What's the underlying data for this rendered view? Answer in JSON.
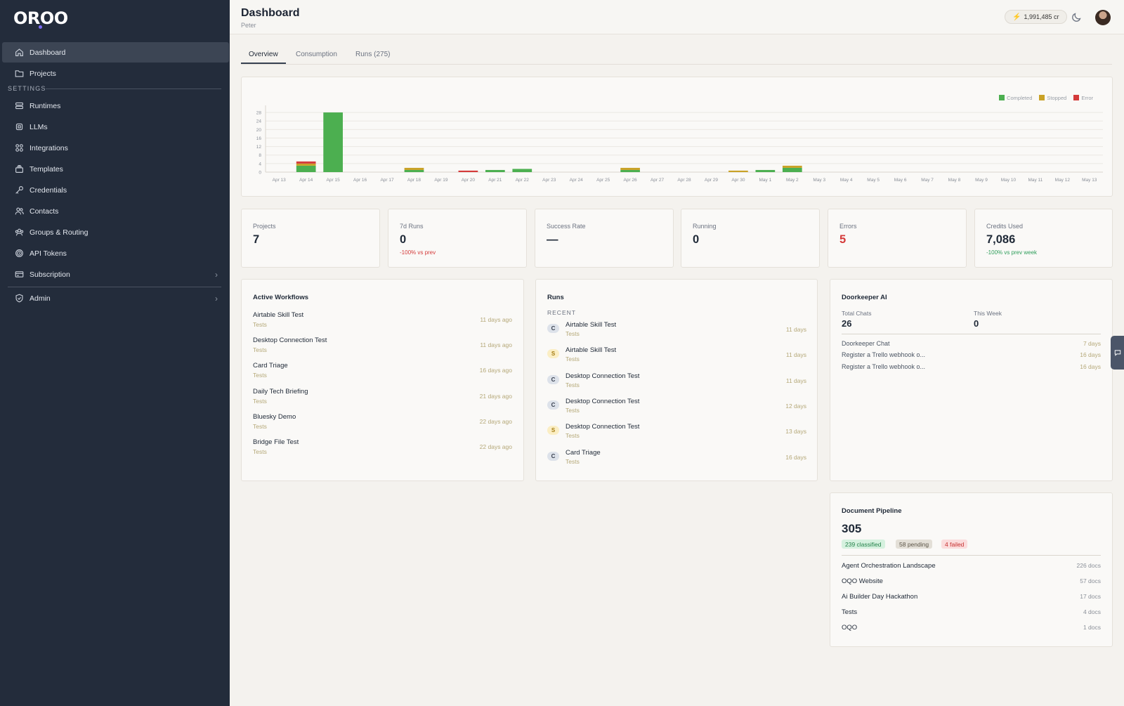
{
  "app": {
    "logo": "OROO"
  },
  "sidebar": {
    "items": [
      {
        "label": "Dashboard",
        "icon": "home-icon"
      },
      {
        "label": "Projects",
        "icon": "folder-icon"
      },
      {
        "label": "Runtimes",
        "icon": "database-icon"
      },
      {
        "label": "LLMs",
        "icon": "chip-icon"
      },
      {
        "label": "Integrations",
        "icon": "grid-icon"
      },
      {
        "label": "Templates",
        "icon": "stack-icon"
      },
      {
        "label": "Credentials",
        "icon": "key-icon"
      },
      {
        "label": "Contacts",
        "icon": "users-icon"
      },
      {
        "label": "Groups & Routing",
        "icon": "group-icon"
      },
      {
        "label": "API Tokens",
        "icon": "fingerprint-icon"
      },
      {
        "label": "Subscription",
        "icon": "card-icon"
      },
      {
        "label": "Admin",
        "icon": "shield-icon"
      }
    ],
    "settings_label": "SETTINGS"
  },
  "header": {
    "title": "Dashboard",
    "subtitle": "Peter",
    "credits": "1,991,485 cr"
  },
  "tabs": [
    {
      "label": "Overview"
    },
    {
      "label": "Consumption"
    },
    {
      "label": "Runs (275)"
    }
  ],
  "chart_data": {
    "type": "bar",
    "stacked": true,
    "categories": [
      "Apr 13",
      "Apr 14",
      "Apr 15",
      "Apr 16",
      "Apr 17",
      "Apr 18",
      "Apr 19",
      "Apr 20",
      "Apr 21",
      "Apr 22",
      "Apr 23",
      "Apr 24",
      "Apr 25",
      "Apr 26",
      "Apr 27",
      "Apr 28",
      "Apr 29",
      "Apr 30",
      "May 1",
      "May 2",
      "May 3",
      "May 4",
      "May 5",
      "May 6",
      "May 7",
      "May 8",
      "May 9",
      "May 10",
      "May 11",
      "May 12",
      "May 13"
    ],
    "series": [
      {
        "name": "Completed",
        "color": "#4caf50",
        "values": [
          0,
          3,
          28,
          0,
          0,
          1,
          0,
          0,
          1,
          1.5,
          0,
          0,
          0,
          1,
          0,
          0,
          0,
          0,
          1,
          2,
          0,
          0,
          0,
          0,
          0,
          0,
          0,
          0,
          0,
          0,
          0
        ]
      },
      {
        "name": "Stopped",
        "color": "#c9a227",
        "values": [
          0,
          1,
          0,
          0,
          0,
          1,
          0,
          0,
          0,
          0,
          0,
          0,
          0,
          1,
          0,
          0,
          0,
          0.7,
          0,
          1,
          0,
          0,
          0,
          0,
          0,
          0,
          0,
          0,
          0,
          0,
          0
        ]
      },
      {
        "name": "Error",
        "color": "#d43b3b",
        "values": [
          0,
          1,
          0,
          0,
          0,
          0,
          0,
          0.7,
          0,
          0,
          0,
          0,
          0,
          0,
          0,
          0,
          0,
          0,
          0,
          0,
          0,
          0,
          0,
          0,
          0,
          0,
          0,
          0,
          0,
          0,
          0
        ]
      }
    ],
    "yticks": [
      0,
      4,
      8,
      12,
      16,
      20,
      24,
      28
    ],
    "ylim": [
      0,
      30
    ],
    "grid": true,
    "legend": "top-right"
  },
  "stats": [
    {
      "label": "Projects",
      "value": "7",
      "sub": ""
    },
    {
      "label": "7d Runs",
      "value": "0",
      "sub": "-100% vs prev"
    },
    {
      "label": "Success Rate",
      "value": "—",
      "sub": ""
    },
    {
      "label": "Running",
      "value": "0",
      "sub": ""
    },
    {
      "label": "Errors",
      "value": "5",
      "sub": ""
    },
    {
      "label": "Credits Used",
      "value": "7,086",
      "sub": "-100% vs prev week"
    }
  ],
  "workflows": {
    "title": "Active Workflows",
    "items": [
      {
        "name": "Airtable Skill Test",
        "tag": "Tests",
        "time": "11 days ago"
      },
      {
        "name": "Desktop Connection Test",
        "tag": "Tests",
        "time": "11 days ago"
      },
      {
        "name": "Card Triage",
        "tag": "Tests",
        "time": "16 days ago"
      },
      {
        "name": "Daily Tech Briefing",
        "tag": "Tests",
        "time": "21 days ago"
      },
      {
        "name": "Bluesky Demo",
        "tag": "Tests",
        "time": "22 days ago"
      },
      {
        "name": "Bridge File Test",
        "tag": "Tests",
        "time": "22 days ago"
      }
    ]
  },
  "runs": {
    "title": "Runs",
    "recent_label": "RECENT",
    "items": [
      {
        "badge": "C",
        "name": "Airtable Skill Test",
        "tag": "Tests",
        "time": "11 days"
      },
      {
        "badge": "S",
        "name": "Airtable Skill Test",
        "tag": "Tests",
        "time": "11 days"
      },
      {
        "badge": "C",
        "name": "Desktop Connection Test",
        "tag": "Tests",
        "time": "11 days"
      },
      {
        "badge": "C",
        "name": "Desktop Connection Test",
        "tag": "Tests",
        "time": "12 days"
      },
      {
        "badge": "S",
        "name": "Desktop Connection Test",
        "tag": "Tests",
        "time": "13 days"
      },
      {
        "badge": "C",
        "name": "Card Triage",
        "tag": "Tests",
        "time": "16 days"
      }
    ]
  },
  "doorkeeper": {
    "title": "Doorkeeper AI",
    "total_chats_label": "Total Chats",
    "total_chats": "26",
    "this_week_label": "This Week",
    "this_week": "0",
    "chats": [
      {
        "name": "Doorkeeper Chat",
        "time": "7 days"
      },
      {
        "name": "Register a Trello webhook o...",
        "time": "16 days"
      },
      {
        "name": "Register a Trello webhook o...",
        "time": "16 days"
      }
    ]
  },
  "pipeline": {
    "title": "Document Pipeline",
    "total": "305",
    "classified": "239 classified",
    "pending": "58 pending",
    "failed": "4 failed",
    "docs": [
      {
        "name": "Agent Orchestration Landscape",
        "count": "226 docs"
      },
      {
        "name": "OQO Website",
        "count": "57 docs"
      },
      {
        "name": "Ai Builder Day Hackathon",
        "count": "17 docs"
      },
      {
        "name": "Tests",
        "count": "4 docs"
      },
      {
        "name": "OQO",
        "count": "1 docs"
      }
    ]
  }
}
